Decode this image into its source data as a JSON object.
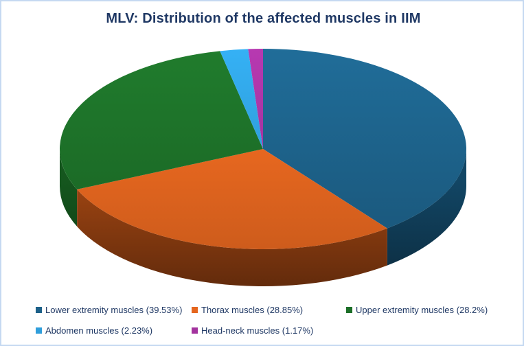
{
  "window": {
    "border_color": "#c5d9f1",
    "background_color": "#ffffff"
  },
  "chart_data": {
    "type": "pie",
    "is_3d": true,
    "title": "MLV: Distribution of the affected muscles in IIM",
    "title_color": "#1f3864",
    "legend_position": "bottom",
    "legend_text_color": "#1f3864",
    "start_angle_deg": 0,
    "direction": "clockwise",
    "slices": [
      {
        "label": "Lower extremity muscles",
        "value": 39.53,
        "legend_text": "Lower extremity muscles (39.53%)",
        "color": "#1d6189",
        "side_color": "#103d58"
      },
      {
        "label": "Thorax muscles",
        "value": 28.85,
        "legend_text": "Thorax muscles (28.85%)",
        "color": "#e5661f",
        "side_color": "#8a3c10"
      },
      {
        "label": "Upper extremity muscles",
        "value": 28.2,
        "legend_text": "Upper extremity muscles (28.2%)",
        "color": "#1d6f28",
        "side_color": "#124c1a"
      },
      {
        "label": "Abdomen muscles",
        "value": 2.23,
        "legend_text": "Abdomen muscles (2.23%)",
        "color": "#2f9edb",
        "side_color": "#1d6f9c"
      },
      {
        "label": "Head-neck muscles",
        "value": 1.17,
        "legend_text": "Head-neck muscles (1.17%)",
        "color": "#a3339e",
        "side_color": "#6e2070"
      }
    ]
  }
}
